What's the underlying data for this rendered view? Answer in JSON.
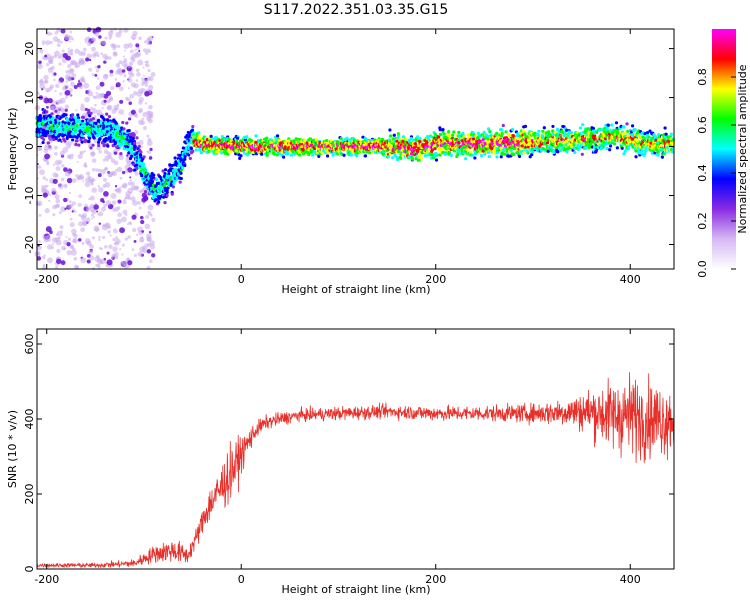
{
  "title": "S117.2022.351.03.35.G15",
  "chart_data": [
    {
      "type": "heatmap",
      "xlabel": "Height of straight line (km)",
      "ylabel": "Frequency (Hz)",
      "xlim": [
        -210,
        445
      ],
      "ylim": [
        -25,
        24
      ],
      "xticks": [
        -200,
        0,
        200,
        400
      ],
      "yticks": [
        20,
        10,
        0,
        -10,
        -20
      ],
      "centerline": {
        "x": [
          -210,
          -190,
          -170,
          -150,
          -130,
          -115,
          -105,
          -95,
          -88,
          -80,
          -70,
          -62,
          -55,
          -50,
          -40,
          0,
          100,
          150,
          180,
          200,
          250,
          300,
          350,
          380,
          400,
          420,
          445
        ],
        "y": [
          4.5,
          4.0,
          4.0,
          3.5,
          3.0,
          0.5,
          -3,
          -7,
          -9,
          -8,
          -6,
          -4,
          0.5,
          1.5,
          0.5,
          0,
          0,
          0,
          -0.5,
          0.5,
          0.5,
          1.0,
          1.5,
          2.0,
          1.5,
          0.5,
          0.5
        ]
      },
      "colorbar": {
        "label": "Normalized spectral amplitude",
        "ticks": [
          0.0,
          0.2,
          0.4,
          0.6,
          0.8
        ],
        "range": [
          0,
          1
        ],
        "colors": [
          "#ffffff",
          "#d7b8f5",
          "#8a2be2",
          "#0000ff",
          "#00ffff",
          "#00ff00",
          "#ffff00",
          "#ff0000",
          "#ff00ff"
        ]
      }
    },
    {
      "type": "line",
      "xlabel": "Height of straight line (km)",
      "ylabel": "SNR (10 * v/v)",
      "xlim": [
        -210,
        445
      ],
      "ylim": [
        0,
        640
      ],
      "xticks": [
        -200,
        0,
        200,
        400
      ],
      "yticks": [
        0,
        200,
        400,
        600
      ],
      "color": "#e8302a",
      "envelope": {
        "x": [
          -210,
          -150,
          -110,
          -90,
          -70,
          -55,
          -45,
          -35,
          -25,
          -15,
          -5,
          5,
          15,
          25,
          40,
          60,
          100,
          150,
          200,
          250,
          300,
          340,
          360,
          380,
          400,
          420,
          445
        ],
        "mean": [
          10,
          10,
          15,
          40,
          50,
          35,
          90,
          160,
          200,
          240,
          280,
          330,
          370,
          390,
          400,
          410,
          415,
          420,
          415,
          415,
          415,
          420,
          420,
          410,
          410,
          400,
          400
        ],
        "noise": [
          6,
          7,
          12,
          25,
          35,
          25,
          30,
          50,
          60,
          80,
          70,
          40,
          25,
          20,
          20,
          18,
          20,
          20,
          22,
          22,
          28,
          45,
          70,
          100,
          120,
          110,
          100
        ]
      }
    }
  ]
}
